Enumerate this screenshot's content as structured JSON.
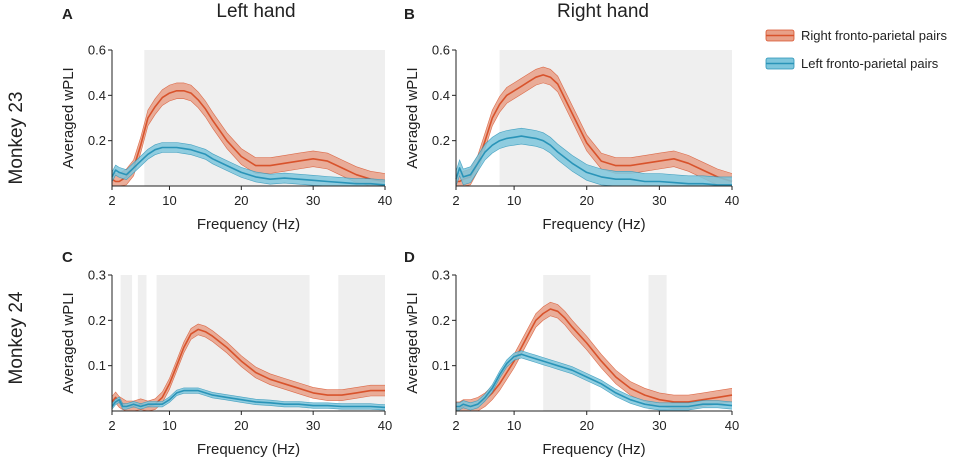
{
  "figure": {
    "column_titles": [
      "Left hand",
      "Right hand"
    ],
    "row_titles": [
      "Monkey 23",
      "Monkey 24"
    ],
    "legend": [
      {
        "label": "Right fronto-parietal pairs",
        "color": "#d8532c",
        "band_color": "#e8a088"
      },
      {
        "label": "Left fronto-parietal pairs",
        "color": "#2a94b8",
        "band_color": "#7ec6dc"
      }
    ]
  },
  "chart_data": [
    {
      "panel": "A",
      "type": "line",
      "xlabel": "Frequency (Hz)",
      "ylabel": "Averaged wPLI",
      "xlim": [
        2,
        40
      ],
      "ylim": [
        0,
        0.6
      ],
      "xticks": [
        2,
        10,
        20,
        30,
        40
      ],
      "xtick_labels": [
        "2",
        "10",
        "20",
        "30",
        "40"
      ],
      "yticks": [
        0.2,
        0.4,
        0.6
      ],
      "ytick_labels": [
        "0.2",
        "0.4",
        "0.6"
      ],
      "shaded_ranges": [
        [
          6.5,
          40
        ]
      ],
      "series": [
        {
          "name": "Right fronto-parietal pairs",
          "band": 0.035,
          "x": [
            2,
            2.5,
            3,
            4,
            5,
            6,
            7,
            8,
            9,
            10,
            11,
            12,
            13,
            14,
            15,
            16,
            18,
            20,
            22,
            24,
            26,
            28,
            30,
            32,
            34,
            36,
            38,
            40
          ],
          "y": [
            0.03,
            0.02,
            0.02,
            0.04,
            0.08,
            0.18,
            0.3,
            0.35,
            0.39,
            0.41,
            0.42,
            0.42,
            0.41,
            0.38,
            0.34,
            0.29,
            0.2,
            0.13,
            0.09,
            0.09,
            0.1,
            0.11,
            0.12,
            0.11,
            0.08,
            0.05,
            0.03,
            0.02
          ]
        },
        {
          "name": "Left fronto-parietal pairs",
          "band": 0.022,
          "x": [
            2,
            2.5,
            3,
            4,
            5,
            6,
            7,
            8,
            9,
            10,
            11,
            12,
            13,
            14,
            15,
            16,
            18,
            20,
            22,
            24,
            26,
            28,
            30,
            32,
            34,
            36,
            38,
            40
          ],
          "y": [
            0.04,
            0.07,
            0.06,
            0.05,
            0.08,
            0.11,
            0.14,
            0.16,
            0.17,
            0.17,
            0.17,
            0.165,
            0.16,
            0.15,
            0.14,
            0.12,
            0.09,
            0.06,
            0.04,
            0.03,
            0.035,
            0.03,
            0.025,
            0.02,
            0.015,
            0.01,
            0.01,
            0.005
          ]
        }
      ]
    },
    {
      "panel": "B",
      "type": "line",
      "xlabel": "Frequency (Hz)",
      "ylabel": "Averaged wPLI",
      "xlim": [
        2,
        40
      ],
      "ylim": [
        0,
        0.6
      ],
      "xticks": [
        2,
        10,
        20,
        30,
        40
      ],
      "xtick_labels": [
        "2",
        "10",
        "20",
        "30",
        "40"
      ],
      "yticks": [
        0.2,
        0.4,
        0.6
      ],
      "ytick_labels": [
        "0.2",
        "0.4",
        "0.6"
      ],
      "shaded_ranges": [
        [
          8,
          40
        ]
      ],
      "series": [
        {
          "name": "Right fronto-parietal pairs",
          "band": 0.035,
          "x": [
            2,
            2.5,
            3,
            4,
            5,
            6,
            7,
            8,
            9,
            10,
            11,
            12,
            13,
            14,
            15,
            16,
            18,
            20,
            22,
            24,
            26,
            28,
            30,
            32,
            34,
            36,
            38,
            40
          ],
          "y": [
            0.02,
            0.02,
            0.03,
            0.04,
            0.1,
            0.2,
            0.3,
            0.36,
            0.4,
            0.42,
            0.44,
            0.46,
            0.48,
            0.49,
            0.48,
            0.45,
            0.32,
            0.19,
            0.11,
            0.09,
            0.09,
            0.1,
            0.11,
            0.12,
            0.1,
            0.07,
            0.04,
            0.02
          ]
        },
        {
          "name": "Left fronto-parietal pairs",
          "band": 0.035,
          "x": [
            2,
            2.5,
            3,
            4,
            5,
            6,
            7,
            8,
            9,
            10,
            11,
            12,
            13,
            14,
            15,
            16,
            18,
            20,
            22,
            24,
            26,
            28,
            30,
            32,
            34,
            36,
            38,
            40
          ],
          "y": [
            0.03,
            0.08,
            0.04,
            0.05,
            0.1,
            0.15,
            0.18,
            0.2,
            0.21,
            0.215,
            0.22,
            0.215,
            0.21,
            0.2,
            0.18,
            0.15,
            0.1,
            0.06,
            0.04,
            0.03,
            0.03,
            0.02,
            0.02,
            0.015,
            0.01,
            0.01,
            0.005,
            0.005
          ]
        }
      ]
    },
    {
      "panel": "C",
      "type": "line",
      "xlabel": "Frequency (Hz)",
      "ylabel": "Averaged wPLI",
      "xlim": [
        2,
        40
      ],
      "ylim": [
        0,
        0.3
      ],
      "xticks": [
        2,
        10,
        20,
        30,
        40
      ],
      "xtick_labels": [
        "2",
        "10",
        "20",
        "30",
        "40"
      ],
      "yticks": [
        0.1,
        0.2,
        0.3
      ],
      "ytick_labels": [
        "0.1",
        "0.2",
        "0.3"
      ],
      "shaded_ranges": [
        [
          3.2,
          4.8
        ],
        [
          5.6,
          6.8
        ],
        [
          8.2,
          29.5
        ],
        [
          33.5,
          40
        ]
      ],
      "series": [
        {
          "name": "Right fronto-parietal pairs",
          "band": 0.012,
          "x": [
            2,
            2.5,
            3,
            3.5,
            4,
            5,
            6,
            7,
            8,
            9,
            10,
            11,
            12,
            13,
            14,
            15,
            16,
            18,
            20,
            22,
            24,
            26,
            28,
            30,
            32,
            34,
            36,
            38,
            40
          ],
          "y": [
            0.02,
            0.03,
            0.02,
            0.015,
            0.01,
            0.01,
            0.015,
            0.01,
            0.015,
            0.03,
            0.06,
            0.1,
            0.14,
            0.17,
            0.18,
            0.175,
            0.165,
            0.14,
            0.11,
            0.085,
            0.07,
            0.06,
            0.05,
            0.04,
            0.035,
            0.035,
            0.04,
            0.045,
            0.045
          ]
        },
        {
          "name": "Left fronto-parietal pairs",
          "band": 0.006,
          "x": [
            2,
            2.5,
            3,
            3.5,
            4,
            5,
            6,
            7,
            8,
            9,
            10,
            11,
            12,
            13,
            14,
            15,
            16,
            18,
            20,
            22,
            24,
            26,
            28,
            30,
            32,
            34,
            36,
            38,
            40
          ],
          "y": [
            0.01,
            0.02,
            0.025,
            0.01,
            0.01,
            0.015,
            0.01,
            0.015,
            0.015,
            0.015,
            0.025,
            0.04,
            0.045,
            0.045,
            0.045,
            0.04,
            0.035,
            0.03,
            0.025,
            0.02,
            0.018,
            0.015,
            0.015,
            0.012,
            0.012,
            0.01,
            0.01,
            0.01,
            0.008
          ]
        }
      ]
    },
    {
      "panel": "D",
      "type": "line",
      "xlabel": "Frequency (Hz)",
      "ylabel": "Averaged wPLI",
      "xlim": [
        2,
        40
      ],
      "ylim": [
        0,
        0.3
      ],
      "xticks": [
        2,
        10,
        20,
        30,
        40
      ],
      "xtick_labels": [
        "2",
        "10",
        "20",
        "30",
        "40"
      ],
      "yticks": [
        0.1,
        0.2,
        0.3
      ],
      "ytick_labels": [
        "0.1",
        "0.2",
        "0.3"
      ],
      "shaded_ranges": [
        [
          14,
          20.5
        ],
        [
          28.5,
          31
        ]
      ],
      "series": [
        {
          "name": "Right fronto-parietal pairs",
          "band": 0.015,
          "x": [
            2,
            2.5,
            3,
            4,
            5,
            6,
            7,
            8,
            9,
            10,
            11,
            12,
            13,
            14,
            15,
            16,
            17,
            18,
            20,
            22,
            24,
            26,
            28,
            30,
            32,
            34,
            36,
            38,
            40
          ],
          "y": [
            0.005,
            0.005,
            0.01,
            0.01,
            0.015,
            0.025,
            0.04,
            0.06,
            0.085,
            0.11,
            0.14,
            0.17,
            0.2,
            0.215,
            0.225,
            0.22,
            0.205,
            0.185,
            0.15,
            0.11,
            0.075,
            0.05,
            0.035,
            0.025,
            0.02,
            0.02,
            0.025,
            0.03,
            0.035
          ]
        },
        {
          "name": "Left fronto-parietal pairs",
          "band": 0.008,
          "x": [
            2,
            2.5,
            3,
            4,
            5,
            6,
            7,
            8,
            9,
            10,
            11,
            12,
            13,
            14,
            15,
            16,
            17,
            18,
            20,
            22,
            24,
            26,
            28,
            30,
            32,
            34,
            36,
            38,
            40
          ],
          "y": [
            0.01,
            0.01,
            0.015,
            0.01,
            0.015,
            0.03,
            0.05,
            0.08,
            0.105,
            0.12,
            0.125,
            0.12,
            0.115,
            0.11,
            0.105,
            0.1,
            0.095,
            0.09,
            0.075,
            0.06,
            0.04,
            0.025,
            0.015,
            0.01,
            0.01,
            0.01,
            0.015,
            0.015,
            0.012
          ]
        }
      ]
    }
  ]
}
